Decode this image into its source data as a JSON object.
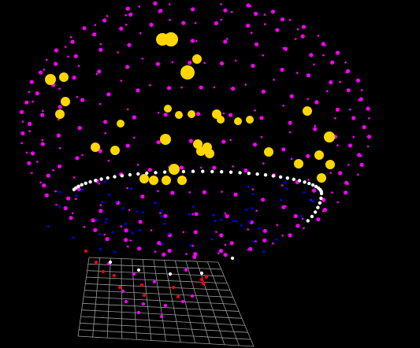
{
  "scene": {
    "background": "#000000",
    "grid_color": "#9a9a9a",
    "sphere_color": "#ff00ff",
    "large_marker_color": "#ffd700",
    "white_marker_color": "#ffffff",
    "blue_marker_color": "#0000ff",
    "red_marker_color": "#ff0000"
  }
}
